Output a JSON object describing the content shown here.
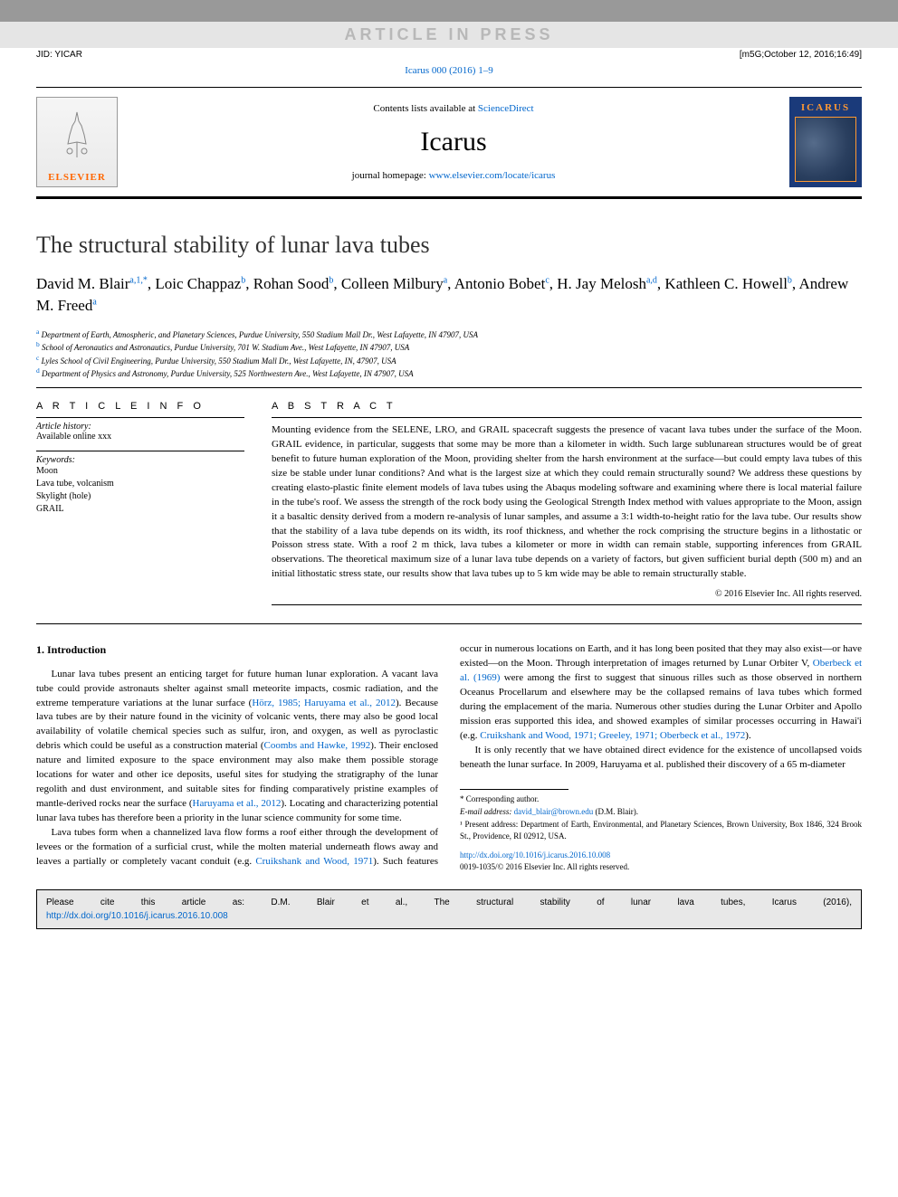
{
  "banner": {
    "article_in_press": "ARTICLE IN PRESS",
    "jid": "JID: YICAR",
    "stamp": "[m5G;October 12, 2016;16:49]",
    "citation_link": "Icarus 000 (2016) 1–9"
  },
  "header": {
    "contents_pre": "Contents lists available at ",
    "contents_link": "ScienceDirect",
    "journal": "Icarus",
    "homepage_pre": "journal homepage: ",
    "homepage_link": "www.elsevier.com/locate/icarus",
    "elsevier_label": "ELSEVIER",
    "cover_title": "ICARUS"
  },
  "paper": {
    "title": "The structural stability of lunar lava tubes",
    "authors_html": "David M. Blair<sup><a>a</a>,<a>1</a>,<a>*</a></sup>, Loic Chappaz<sup><a>b</a></sup>, Rohan Sood<sup><a>b</a></sup>, Colleen Milbury<sup><a>a</a></sup>, Antonio Bobet<sup><a>c</a></sup>, H. Jay Melosh<sup><a>a</a>,<a>d</a></sup>, Kathleen C. Howell<sup><a>b</a></sup>, Andrew M. Freed<sup><a>a</a></sup>",
    "affiliations": [
      {
        "sup": "a",
        "text": "Department of Earth, Atmospheric, and Planetary Sciences, Purdue University, 550 Stadium Mall Dr., West Lafayette, IN 47907, USA"
      },
      {
        "sup": "b",
        "text": "School of Aeronautics and Astronautics, Purdue University, 701 W. Stadium Ave., West Lafayette, IN 47907, USA"
      },
      {
        "sup": "c",
        "text": "Lyles School of Civil Engineering, Purdue University, 550 Stadium Mall Dr., West Lafayette, IN, 47907, USA"
      },
      {
        "sup": "d",
        "text": "Department of Physics and Astronomy, Purdue University, 525 Northwestern Ave., West Lafayette, IN 47907, USA"
      }
    ]
  },
  "info": {
    "heading": "a r t i c l e   i n f o",
    "history_label": "Article history:",
    "history_text": "Available online xxx",
    "keywords_label": "Keywords:",
    "keywords": [
      "Moon",
      "Lava tube, volcanism",
      "Skylight (hole)",
      "GRAIL"
    ]
  },
  "abstract": {
    "heading": "a b s t r a c t",
    "text": "Mounting evidence from the SELENE, LRO, and GRAIL spacecraft suggests the presence of vacant lava tubes under the surface of the Moon. GRAIL evidence, in particular, suggests that some may be more than a kilometer in width. Such large sublunarean structures would be of great benefit to future human exploration of the Moon, providing shelter from the harsh environment at the surface—but could empty lava tubes of this size be stable under lunar conditions? And what is the largest size at which they could remain structurally sound? We address these questions by creating elasto-plastic finite element models of lava tubes using the Abaqus modeling software and examining where there is local material failure in the tube's roof. We assess the strength of the rock body using the Geological Strength Index method with values appropriate to the Moon, assign it a basaltic density derived from a modern re-analysis of lunar samples, and assume a 3:1 width-to-height ratio for the lava tube. Our results show that the stability of a lava tube depends on its width, its roof thickness, and whether the rock comprising the structure begins in a lithostatic or Poisson stress state. With a roof 2 m thick, lava tubes a kilometer or more in width can remain stable, supporting inferences from GRAIL observations. The theoretical maximum size of a lunar lava tube depends on a variety of factors, but given sufficient burial depth (500 m) and an initial lithostatic stress state, our results show that lava tubes up to 5 km wide may be able to remain structurally stable.",
    "copyright": "© 2016 Elsevier Inc. All rights reserved."
  },
  "body": {
    "intro_heading": "1. Introduction",
    "p1_pre": "Lunar lava tubes present an enticing target for future human lunar exploration. A vacant lava tube could provide astronauts shelter against small meteorite impacts, cosmic radiation, and the extreme temperature variations at the lunar surface (",
    "p1_link1": "Hörz, 1985; Haruyama et al., 2012",
    "p1_mid1": "). Because lava tubes are by their nature found in the vicinity of volcanic vents, there may also be good local availability of volatile chemical species such as sulfur, iron, and oxygen, as well as pyroclastic debris which could be useful as a construction material (",
    "p1_link2": "Coombs and Hawke, 1992",
    "p1_mid2": "). Their enclosed nature and limited exposure to the space environment may also make them possible storage locations for water and other ice deposits, useful sites for studying the stratigraphy of the lunar regolith and dust environment, and suitable sites for finding comparatively pristine examples of mantle-derived rocks near the surface (",
    "p1_link3": "Haruyama et al., 2012",
    "p1_post": "). Locating and characterizing potential lunar lava tubes has therefore been a priority in the lunar science community for some time.",
    "p2_pre": "Lava tubes form when a channelized lava flow forms a roof either through the development of levees or the formation of a surficial crust, while the molten material underneath flows away and leaves a partially or completely vacant conduit (e.g. ",
    "p2_link1": "Cruikshank and Wood, 1971",
    "p2_mid1": "). Such features occur in numerous locations on Earth, and it has long been posited that they may also exist—or have existed—on the Moon. Through interpretation of images returned by Lunar Orbiter V, ",
    "p2_link2": "Oberbeck et al. (1969)",
    "p2_mid2": " were among the first to suggest that sinuous rilles such as those observed in northern Oceanus Procellarum and elsewhere may be the collapsed remains of lava tubes which formed during the emplacement of the maria. Numerous other studies during the Lunar Orbiter and Apollo mission eras supported this idea, and showed examples of similar processes occurring in Hawai'i (e.g. ",
    "p2_link3": "Cruikshank and Wood, 1971; Greeley, 1971; Oberbeck et al., 1972",
    "p2_post": ").",
    "p3": "It is only recently that we have obtained direct evidence for the existence of uncollapsed voids beneath the lunar surface. In 2009, Haruyama et al. published their discovery of a 65 m-diameter"
  },
  "footnotes": {
    "corresponding": "* Corresponding author.",
    "email_label": "E-mail address: ",
    "email_link": "david_blair@brown.edu",
    "email_post": " (D.M. Blair).",
    "present": "¹ Present address: Department of Earth, Environmental, and Planetary Sciences, Brown University, Box 1846, 324 Brook St., Providence, RI 02912, USA.",
    "doi_link": "http://dx.doi.org/10.1016/j.icarus.2016.10.008",
    "issn": "0019-1035/© 2016 Elsevier Inc. All rights reserved."
  },
  "citebox": {
    "text": "Please cite this article as: D.M. Blair et al., The structural stability of lunar lava tubes, Icarus (2016),",
    "link": "http://dx.doi.org/10.1016/j.icarus.2016.10.008"
  },
  "colors": {
    "link": "#0066cc",
    "gray_band": "#e5e5e5",
    "gray_bar": "#999999",
    "cite_bg": "#e8e8e8",
    "cover_bg": "#1a3a7a",
    "cover_accent": "#ff9933",
    "elsevier_orange": "#ff6600"
  }
}
